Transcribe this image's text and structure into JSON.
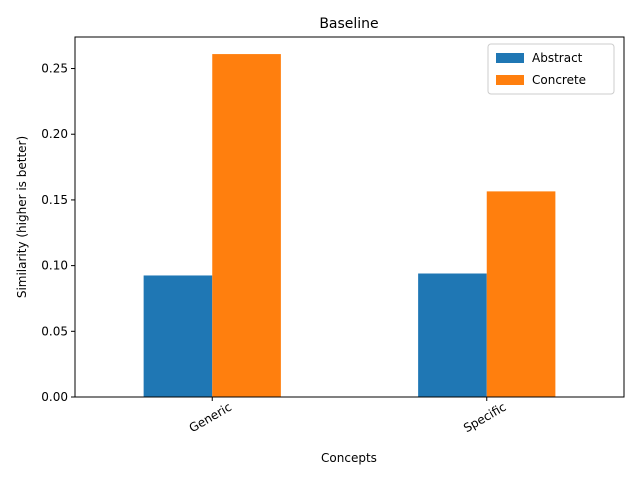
{
  "chart_data": {
    "type": "bar",
    "title": "Baseline",
    "xlabel": "Concepts",
    "ylabel": "Similarity (higher is better)",
    "categories": [
      "Generic",
      "Specific"
    ],
    "series": [
      {
        "name": "Abstract",
        "values": [
          0.0925,
          0.094
        ],
        "color": "#1f77b4"
      },
      {
        "name": "Concrete",
        "values": [
          0.261,
          0.1565
        ],
        "color": "#ff7f0e"
      }
    ],
    "ylim": [
      0,
      0.274
    ],
    "yticks": [
      0.0,
      0.05,
      0.1,
      0.15,
      0.2,
      0.25
    ],
    "ytick_labels": [
      "0.00",
      "0.05",
      "0.10",
      "0.15",
      "0.20",
      "0.25"
    ],
    "xtick_rotation": 30,
    "legend_position": "top-right",
    "grid": false
  }
}
